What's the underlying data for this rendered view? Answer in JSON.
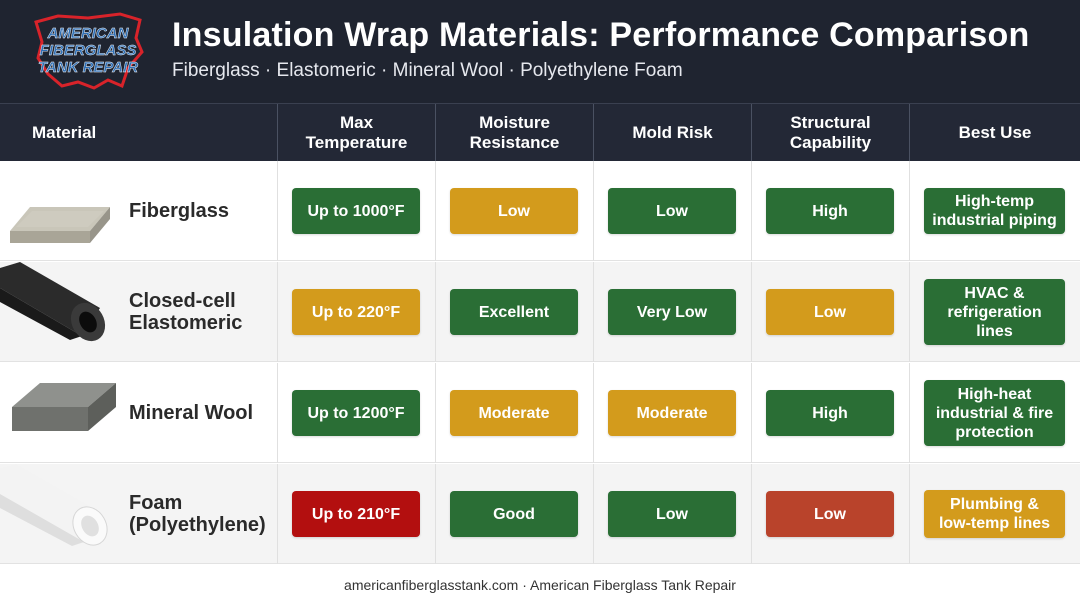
{
  "logo": {
    "line1": "AMERICAN",
    "line2": "FIBERGLASS",
    "line3": "TANK REPAIR"
  },
  "header": {
    "title": "Insulation Wrap Materials: Performance Comparison",
    "subtitle": "Fiberglass · Elastomeric · Mineral Wool · Polyethylene Foam"
  },
  "columns": {
    "material": "Material",
    "max_temp_1": "Max",
    "max_temp_2": "Temperature",
    "moisture_1": "Moisture",
    "moisture_2": "Resistance",
    "mold": "Mold Risk",
    "structural_1": "Structural",
    "structural_2": "Capability",
    "best_use": "Best Use"
  },
  "colors": {
    "green": "#2a6e35",
    "amber": "#d39b1c",
    "red": "#b30f0f",
    "orange_red": "#b9432b"
  },
  "rows": [
    {
      "name_1": "Fiberglass",
      "name_2": "",
      "max_temp": "Up to 1000°F",
      "max_temp_color": "green",
      "moisture": "Low",
      "moisture_color": "amber",
      "mold": "Low",
      "mold_color": "green",
      "structural": "High",
      "structural_color": "green",
      "best_1": "High-temp",
      "best_2": "industrial piping",
      "best_3": "",
      "best_color": "green"
    },
    {
      "name_1": "Closed-cell",
      "name_2": "Elastomeric",
      "max_temp": "Up to 220°F",
      "max_temp_color": "amber",
      "moisture": "Excellent",
      "moisture_color": "green",
      "mold": "Very Low",
      "mold_color": "green",
      "structural": "Low",
      "structural_color": "amber",
      "best_1": "HVAC &",
      "best_2": "refrigeration",
      "best_3": "lines",
      "best_color": "green"
    },
    {
      "name_1": "Mineral Wool",
      "name_2": "",
      "max_temp": "Up to 1200°F",
      "max_temp_color": "green",
      "moisture": "Moderate",
      "moisture_color": "amber",
      "mold": "Moderate",
      "mold_color": "amber",
      "structural": "High",
      "structural_color": "green",
      "best_1": "High-heat",
      "best_2": "industrial & fire",
      "best_3": "protection",
      "best_color": "green"
    },
    {
      "name_1": "Foam",
      "name_2": "(Polyethylene)",
      "max_temp": "Up to 210°F",
      "max_temp_color": "red",
      "moisture": "Good",
      "moisture_color": "green",
      "mold": "Low",
      "mold_color": "green",
      "structural": "Low",
      "structural_color": "orange_red",
      "best_1": "Plumbing &",
      "best_2": "low-temp lines",
      "best_3": "",
      "best_color": "amber"
    }
  ],
  "footer": {
    "text": "americanfiberglasstank.com · American Fiberglass Tank Repair"
  }
}
